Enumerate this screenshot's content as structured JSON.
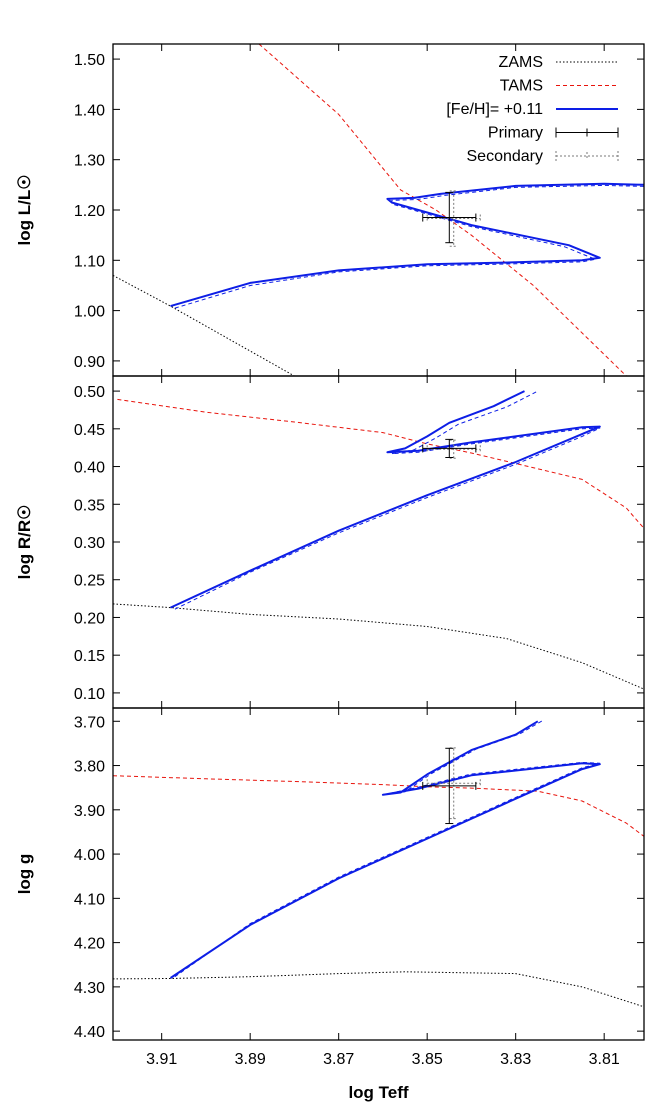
{
  "colors": {
    "zams": "#000000",
    "tams": "#e8140c",
    "track": "#0d1ee6",
    "primary": "#000000",
    "secondary": "#7a7a7a"
  },
  "legend": {
    "items": [
      {
        "key": "zams",
        "label": "ZAMS",
        "style": "dotted"
      },
      {
        "key": "tams",
        "label": "TAMS",
        "style": "dashed"
      },
      {
        "key": "track",
        "label": "[Fe/H]= +0.11",
        "style": "solid"
      },
      {
        "key": "primary",
        "label": "Primary",
        "style": "errorbar"
      },
      {
        "key": "secondary",
        "label": "Secondary",
        "style": "errorbar-dotted"
      }
    ]
  },
  "chart_data": [
    {
      "type": "line",
      "panel": "luminosity",
      "ylabel": "log L/L☉",
      "ylim": [
        0.87,
        1.53
      ],
      "xlim": [
        3.921,
        3.801
      ],
      "x_reversed": true,
      "y_reversed": false,
      "y_tick_values": [
        1.5,
        1.4,
        1.3,
        1.2,
        1.1,
        1.0,
        0.9
      ],
      "y_tick_labels": [
        "1.50",
        "1.40",
        "1.30",
        "1.20",
        "1.10",
        "1.00",
        "0.90"
      ],
      "zams": [
        [
          3.921,
          1.07
        ],
        [
          3.908,
          1.009
        ],
        [
          3.88,
          0.87
        ]
      ],
      "tams": [
        [
          3.888,
          1.53
        ],
        [
          3.87,
          1.39
        ],
        [
          3.856,
          1.24
        ],
        [
          3.848,
          1.2
        ],
        [
          3.84,
          1.15
        ],
        [
          3.826,
          1.05
        ],
        [
          3.805,
          0.87
        ]
      ],
      "track": [
        [
          3.908,
          1.009
        ],
        [
          3.89,
          1.055
        ],
        [
          3.87,
          1.08
        ],
        [
          3.85,
          1.092
        ],
        [
          3.83,
          1.096
        ],
        [
          3.815,
          1.1
        ],
        [
          3.811,
          1.105
        ],
        [
          3.818,
          1.13
        ],
        [
          3.84,
          1.17
        ],
        [
          3.85,
          1.195
        ],
        [
          3.858,
          1.215
        ],
        [
          3.859,
          1.222
        ],
        [
          3.853,
          1.224
        ],
        [
          3.847,
          1.232
        ],
        [
          3.83,
          1.248
        ],
        [
          3.81,
          1.252
        ],
        [
          3.801,
          1.25
        ]
      ],
      "track_dashed": [
        [
          3.907,
          1.005
        ],
        [
          3.89,
          1.05
        ],
        [
          3.87,
          1.077
        ],
        [
          3.85,
          1.089
        ],
        [
          3.83,
          1.093
        ],
        [
          3.815,
          1.097
        ],
        [
          3.812,
          1.102
        ],
        [
          3.819,
          1.127
        ],
        [
          3.84,
          1.167
        ],
        [
          3.85,
          1.192
        ],
        [
          3.858,
          1.212
        ],
        [
          3.858,
          1.219
        ],
        [
          3.852,
          1.221
        ],
        [
          3.846,
          1.229
        ],
        [
          3.83,
          1.245
        ],
        [
          3.81,
          1.249
        ],
        [
          3.801,
          1.247
        ]
      ],
      "primary": {
        "x": 3.845,
        "y": 1.185,
        "xerr": 0.006,
        "yerr": 0.05
      },
      "secondary": {
        "x": 3.844,
        "y": 1.183,
        "xerr": 0.006,
        "yerr": 0.055
      }
    },
    {
      "type": "line",
      "panel": "radius",
      "ylabel": "log R/R☉",
      "ylim": [
        0.08,
        0.52
      ],
      "xlim": [
        3.921,
        3.801
      ],
      "x_reversed": true,
      "y_reversed": false,
      "y_tick_values": [
        0.5,
        0.45,
        0.4,
        0.35,
        0.3,
        0.25,
        0.2,
        0.15,
        0.1
      ],
      "y_tick_labels": [
        "0.50",
        "0.45",
        "0.40",
        "0.35",
        "0.30",
        "0.25",
        "0.20",
        "0.15",
        "0.10"
      ],
      "zams": [
        [
          3.921,
          0.218
        ],
        [
          3.908,
          0.213
        ],
        [
          3.89,
          0.204
        ],
        [
          3.87,
          0.198
        ],
        [
          3.85,
          0.188
        ],
        [
          3.832,
          0.172
        ],
        [
          3.815,
          0.14
        ],
        [
          3.801,
          0.105
        ]
      ],
      "tams": [
        [
          3.92,
          0.489
        ],
        [
          3.9,
          0.472
        ],
        [
          3.88,
          0.459
        ],
        [
          3.86,
          0.445
        ],
        [
          3.85,
          0.43
        ],
        [
          3.84,
          0.418
        ],
        [
          3.83,
          0.404
        ],
        [
          3.815,
          0.383
        ],
        [
          3.805,
          0.345
        ],
        [
          3.801,
          0.318
        ]
      ],
      "track": [
        [
          3.908,
          0.213
        ],
        [
          3.89,
          0.262
        ],
        [
          3.87,
          0.315
        ],
        [
          3.85,
          0.362
        ],
        [
          3.83,
          0.406
        ],
        [
          3.815,
          0.443
        ],
        [
          3.811,
          0.453
        ],
        [
          3.815,
          0.452
        ],
        [
          3.84,
          0.432
        ],
        [
          3.852,
          0.421
        ],
        [
          3.859,
          0.419
        ],
        [
          3.855,
          0.424
        ],
        [
          3.85,
          0.44
        ],
        [
          3.845,
          0.458
        ],
        [
          3.835,
          0.48
        ],
        [
          3.828,
          0.5
        ]
      ],
      "track_dashed": [
        [
          3.907,
          0.211
        ],
        [
          3.89,
          0.26
        ],
        [
          3.87,
          0.312
        ],
        [
          3.85,
          0.359
        ],
        [
          3.83,
          0.403
        ],
        [
          3.815,
          0.44
        ],
        [
          3.811,
          0.451
        ],
        [
          3.815,
          0.45
        ],
        [
          3.84,
          0.43
        ],
        [
          3.852,
          0.419
        ],
        [
          3.858,
          0.417
        ],
        [
          3.853,
          0.422
        ],
        [
          3.848,
          0.438
        ],
        [
          3.843,
          0.456
        ],
        [
          3.832,
          0.479
        ],
        [
          3.825,
          0.5
        ]
      ],
      "primary": {
        "x": 3.845,
        "y": 0.424,
        "xerr": 0.006,
        "yerr": 0.012
      },
      "secondary": {
        "x": 3.844,
        "y": 0.423,
        "xerr": 0.006,
        "yerr": 0.012
      }
    },
    {
      "type": "line",
      "panel": "gravity",
      "ylabel": "log g",
      "ylim": [
        4.42,
        3.67
      ],
      "xlim": [
        3.921,
        3.801
      ],
      "x_reversed": true,
      "y_reversed": true,
      "y_tick_values": [
        3.7,
        3.8,
        3.9,
        4.0,
        4.1,
        4.2,
        4.3,
        4.4
      ],
      "y_tick_labels": [
        "3.70",
        "3.80",
        "3.90",
        "4.00",
        "4.10",
        "4.20",
        "4.30",
        "4.40"
      ],
      "x_tick_values": [
        3.91,
        3.89,
        3.87,
        3.85,
        3.83,
        3.81
      ],
      "x_tick_labels": [
        "3.91",
        "3.89",
        "3.87",
        "3.85",
        "3.83",
        "3.81"
      ],
      "xlabel": "log Teff",
      "zams": [
        [
          3.921,
          4.282
        ],
        [
          3.908,
          4.281
        ],
        [
          3.89,
          4.277
        ],
        [
          3.87,
          4.27
        ],
        [
          3.855,
          4.266
        ],
        [
          3.83,
          4.27
        ],
        [
          3.815,
          4.3
        ],
        [
          3.801,
          4.345
        ]
      ],
      "tams": [
        [
          3.921,
          3.823
        ],
        [
          3.9,
          3.83
        ],
        [
          3.88,
          3.836
        ],
        [
          3.86,
          3.843
        ],
        [
          3.85,
          3.848
        ],
        [
          3.84,
          3.851
        ],
        [
          3.825,
          3.858
        ],
        [
          3.815,
          3.88
        ],
        [
          3.805,
          3.93
        ],
        [
          3.801,
          3.96
        ]
      ],
      "track": [
        [
          3.908,
          4.28
        ],
        [
          3.89,
          4.16
        ],
        [
          3.87,
          4.055
        ],
        [
          3.85,
          3.965
        ],
        [
          3.83,
          3.875
        ],
        [
          3.815,
          3.808
        ],
        [
          3.811,
          3.797
        ],
        [
          3.815,
          3.795
        ],
        [
          3.84,
          3.822
        ],
        [
          3.852,
          3.852
        ],
        [
          3.86,
          3.866
        ],
        [
          3.856,
          3.861
        ],
        [
          3.85,
          3.82
        ],
        [
          3.84,
          3.765
        ],
        [
          3.83,
          3.73
        ],
        [
          3.825,
          3.7
        ]
      ],
      "track_dashed": [
        [
          3.907,
          4.277
        ],
        [
          3.89,
          4.157
        ],
        [
          3.87,
          4.052
        ],
        [
          3.85,
          3.962
        ],
        [
          3.83,
          3.872
        ],
        [
          3.815,
          3.805
        ],
        [
          3.811,
          3.795
        ],
        [
          3.815,
          3.793
        ],
        [
          3.84,
          3.819
        ],
        [
          3.852,
          3.849
        ],
        [
          3.859,
          3.864
        ],
        [
          3.855,
          3.859
        ],
        [
          3.849,
          3.818
        ],
        [
          3.839,
          3.763
        ],
        [
          3.829,
          3.728
        ],
        [
          3.824,
          3.699
        ]
      ],
      "primary": {
        "x": 3.845,
        "y": 3.846,
        "xerr": 0.006,
        "yerr": 0.085
      },
      "secondary": {
        "x": 3.844,
        "y": 3.84,
        "xerr": 0.006,
        "yerr": 0.08
      }
    }
  ]
}
